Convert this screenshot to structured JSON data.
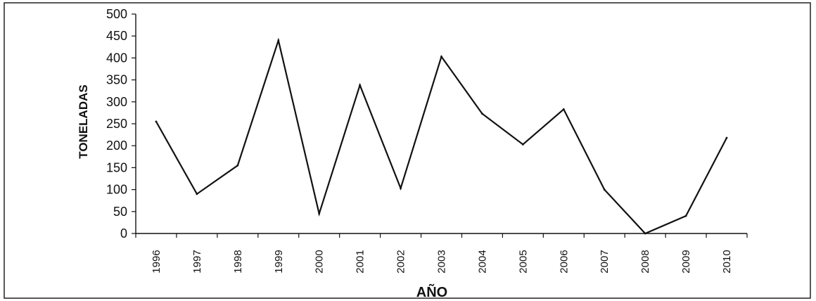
{
  "chart_data": {
    "type": "line",
    "title": "",
    "xlabel": "AÑO",
    "ylabel": "TONELADAS",
    "categories": [
      "1996",
      "1997",
      "1998",
      "1999",
      "2000",
      "2001",
      "2002",
      "2003",
      "2004",
      "2005",
      "2006",
      "2007",
      "2008",
      "2009",
      "2010"
    ],
    "values": [
      255,
      90,
      155,
      440,
      45,
      338,
      103,
      403,
      273,
      203,
      283,
      100,
      0,
      40,
      218
    ],
    "ylim": [
      0,
      500
    ],
    "yticks": [
      "0",
      "50",
      "100",
      "150",
      "200",
      "250",
      "300",
      "350",
      "400",
      "450",
      "500"
    ],
    "grid": false,
    "legend": "none",
    "line_color": "#111111"
  }
}
